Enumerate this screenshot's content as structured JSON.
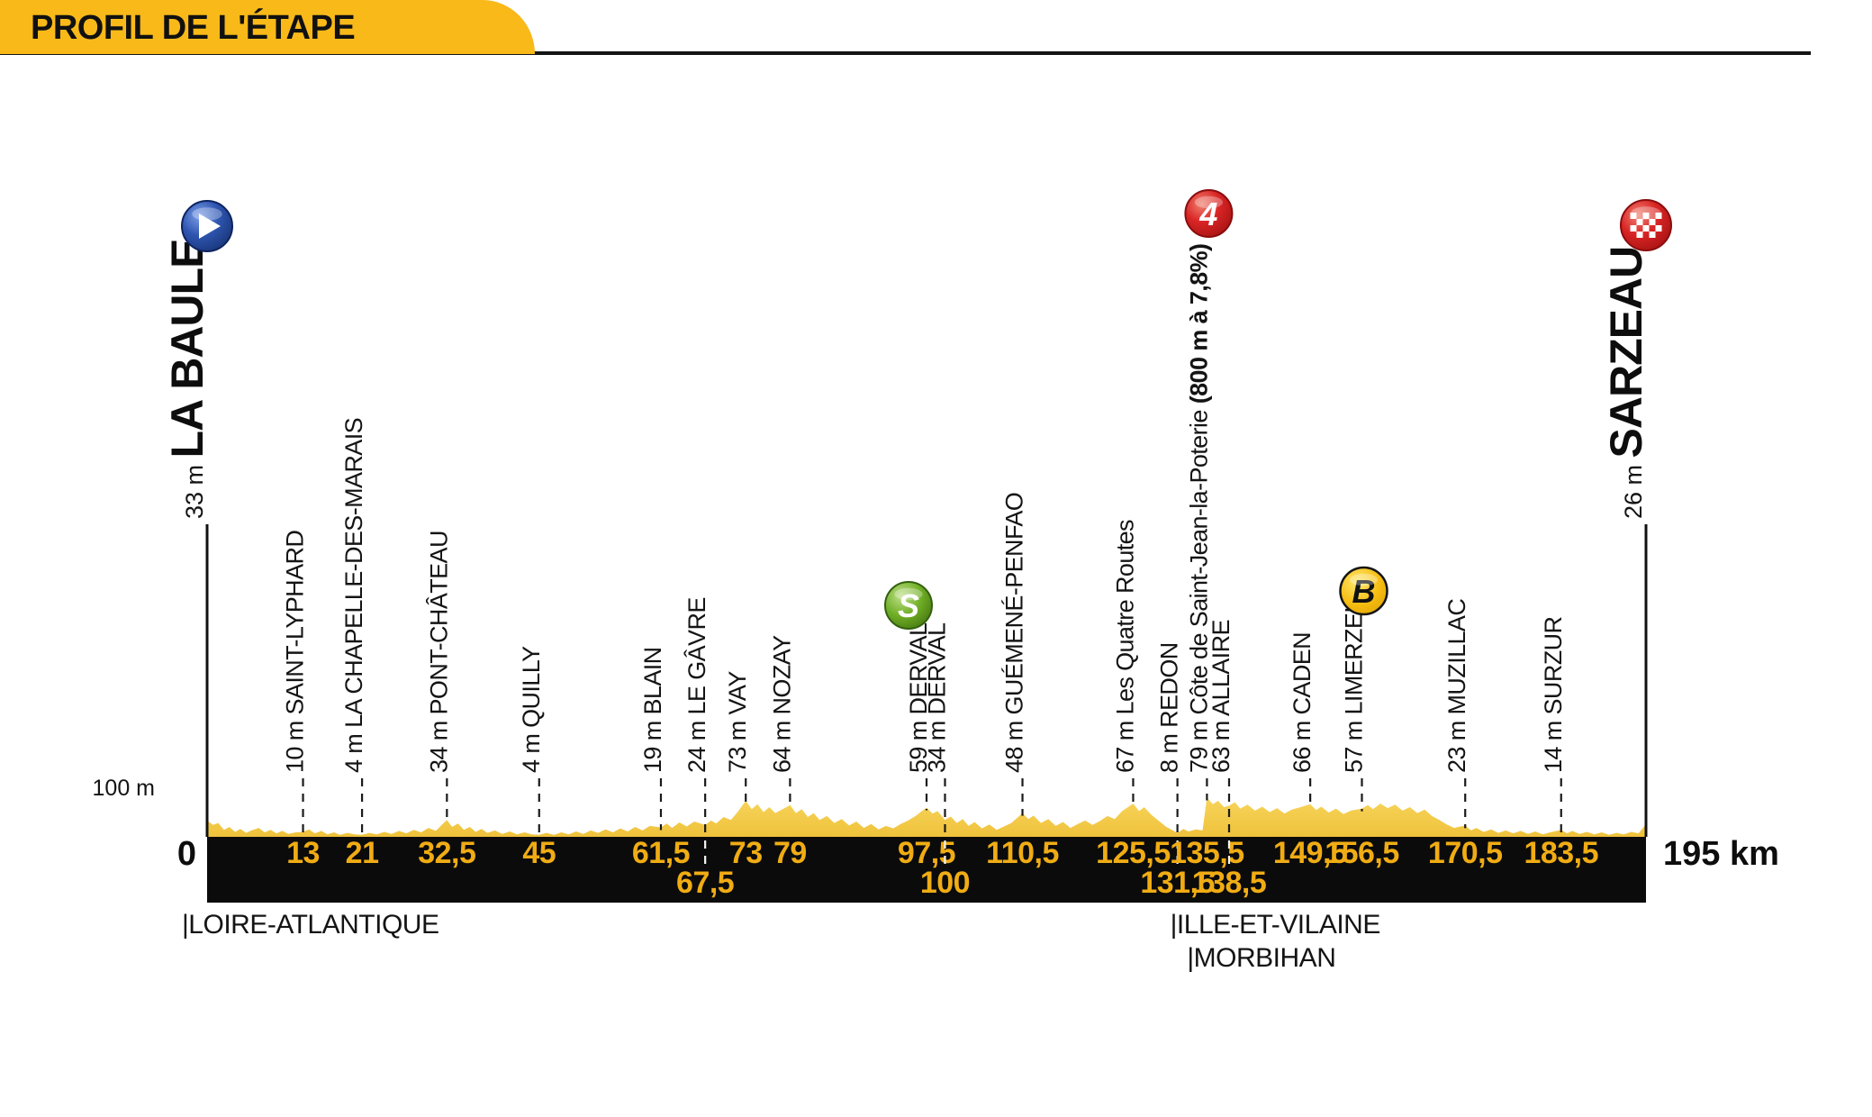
{
  "header": {
    "title": "PROFIL DE L'ÉTAPE"
  },
  "chart_data": {
    "type": "area",
    "title": "PROFIL DE L'ÉTAPE",
    "x_unit": "km",
    "y_unit": "m",
    "total_km": 195,
    "ylim": [
      0,
      100
    ],
    "axis": {
      "origin_label": "0",
      "end_label": "195 km",
      "elevation_marker": "100 m"
    },
    "start": {
      "name": "LA BAULE",
      "elevation_label": "33 m",
      "icon": "start"
    },
    "finish": {
      "name": "SARZEAU",
      "elevation_label": "26 m",
      "icon": "finish"
    },
    "waypoints": [
      {
        "km": 13,
        "km_label": "13",
        "elevation_label": "10 m",
        "name": "SAINT-LYPHARD",
        "row": 1,
        "icon": null
      },
      {
        "km": 21,
        "km_label": "21",
        "elevation_label": "4 m",
        "name": "LA CHAPELLE-DES-MARAIS",
        "row": 1,
        "icon": null
      },
      {
        "km": 32.5,
        "km_label": "32,5",
        "elevation_label": "34 m",
        "name": "PONT-CHÂTEAU",
        "row": 1,
        "icon": null
      },
      {
        "km": 45,
        "km_label": "45",
        "elevation_label": "4 m",
        "name": "QUILLY",
        "row": 1,
        "icon": null
      },
      {
        "km": 61.5,
        "km_label": "61,5",
        "elevation_label": "19 m",
        "name": "BLAIN",
        "row": 1,
        "icon": null
      },
      {
        "km": 67.5,
        "km_label": "67,5",
        "elevation_label": "24 m",
        "name": "LE GÂVRE",
        "row": 2,
        "icon": null
      },
      {
        "km": 73,
        "km_label": "73",
        "elevation_label": "73 m",
        "name": "VAY",
        "row": 1,
        "icon": null
      },
      {
        "km": 79,
        "km_label": "79",
        "elevation_label": "64 m",
        "name": "NOZAY",
        "row": 1,
        "icon": null
      },
      {
        "km": 97.5,
        "km_label": "97,5",
        "elevation_label": "59 m",
        "name": "DERVAL",
        "row": 1,
        "icon": "sprint"
      },
      {
        "km": 100,
        "km_label": "100",
        "elevation_label": "34 m",
        "name": "DERVAL",
        "row": 2,
        "icon": null
      },
      {
        "km": 110.5,
        "km_label": "110,5",
        "elevation_label": "48 m",
        "name": "GUÉMENÉ-PENFAO",
        "row": 1,
        "icon": null
      },
      {
        "km": 125.5,
        "km_label": "125,5",
        "elevation_label": "67 m",
        "name": "Les Quatre Routes",
        "row": 1,
        "icon": null
      },
      {
        "km": 131.5,
        "km_label": "131,5",
        "elevation_label": "8 m",
        "name": "REDON",
        "row": 2,
        "icon": null
      },
      {
        "km": 135.5,
        "km_label": "135,5",
        "elevation_label": "79 m",
        "name": "Côte de Saint-Jean-la-Poterie",
        "detail": "(800 m à 7,8%)",
        "row": 1,
        "icon": "category-4"
      },
      {
        "km": 138.5,
        "km_label": "138,5",
        "elevation_label": "63 m",
        "name": "ALLAIRE",
        "row": 2,
        "icon": null
      },
      {
        "km": 149.5,
        "km_label": "149,5",
        "elevation_label": "66 m",
        "name": "CADEN",
        "row": 1,
        "icon": null
      },
      {
        "km": 156.5,
        "km_label": "156,5",
        "elevation_label": "57 m",
        "name": "LIMERZEL",
        "row": 1,
        "icon": "bonus"
      },
      {
        "km": 170.5,
        "km_label": "170,5",
        "elevation_label": "23 m",
        "name": "MUZILLAC",
        "row": 1,
        "icon": null
      },
      {
        "km": 183.5,
        "km_label": "183,5",
        "elevation_label": "14 m",
        "name": "SURZUR",
        "row": 1,
        "icon": null
      }
    ],
    "regions": [
      {
        "name": "LOIRE-ATLANTIQUE",
        "km": 0,
        "row": 1
      },
      {
        "name": "ILLE-ET-VILAINE",
        "km": 131.5,
        "row": 1
      },
      {
        "name": "MORBIHAN",
        "km": 135.5,
        "row": 2
      }
    ],
    "profile": [
      [
        0,
        33
      ],
      [
        0.8,
        24
      ],
      [
        1.5,
        28
      ],
      [
        2.3,
        14
      ],
      [
        3,
        20
      ],
      [
        3.8,
        10
      ],
      [
        4.5,
        16
      ],
      [
        5.3,
        8
      ],
      [
        6,
        13
      ],
      [
        7,
        18
      ],
      [
        7.8,
        9
      ],
      [
        8.6,
        14
      ],
      [
        9.4,
        7
      ],
      [
        10.2,
        12
      ],
      [
        11,
        6
      ],
      [
        12,
        9
      ],
      [
        13,
        10
      ],
      [
        13.8,
        15
      ],
      [
        14.6,
        7
      ],
      [
        15.5,
        12
      ],
      [
        16.3,
        5
      ],
      [
        17.2,
        9
      ],
      [
        18,
        4
      ],
      [
        19,
        8
      ],
      [
        20,
        5
      ],
      [
        21,
        4
      ],
      [
        22,
        8
      ],
      [
        23,
        5
      ],
      [
        24,
        10
      ],
      [
        25,
        6
      ],
      [
        26,
        12
      ],
      [
        27,
        7
      ],
      [
        28,
        14
      ],
      [
        29,
        9
      ],
      [
        30,
        18
      ],
      [
        31,
        12
      ],
      [
        31.8,
        24
      ],
      [
        32.5,
        34
      ],
      [
        33.2,
        20
      ],
      [
        34,
        27
      ],
      [
        34.8,
        14
      ],
      [
        35.6,
        20
      ],
      [
        36.4,
        10
      ],
      [
        37.2,
        16
      ],
      [
        38,
        8
      ],
      [
        39,
        13
      ],
      [
        40,
        6
      ],
      [
        41,
        11
      ],
      [
        42,
        5
      ],
      [
        43,
        9
      ],
      [
        44,
        5
      ],
      [
        45,
        4
      ],
      [
        46,
        8
      ],
      [
        47,
        4
      ],
      [
        48,
        9
      ],
      [
        49,
        5
      ],
      [
        50,
        11
      ],
      [
        51,
        6
      ],
      [
        52,
        13
      ],
      [
        53,
        8
      ],
      [
        54,
        15
      ],
      [
        55,
        9
      ],
      [
        56,
        17
      ],
      [
        57,
        11
      ],
      [
        58,
        20
      ],
      [
        59,
        13
      ],
      [
        60,
        22
      ],
      [
        61.5,
        19
      ],
      [
        62.3,
        27
      ],
      [
        63,
        18
      ],
      [
        64,
        29
      ],
      [
        65,
        21
      ],
      [
        66,
        31
      ],
      [
        67.5,
        24
      ],
      [
        68.3,
        33
      ],
      [
        69,
        27
      ],
      [
        70,
        40
      ],
      [
        71,
        34
      ],
      [
        72,
        52
      ],
      [
        73,
        73
      ],
      [
        73.8,
        56
      ],
      [
        74.6,
        66
      ],
      [
        75.4,
        50
      ],
      [
        76.2,
        60
      ],
      [
        77,
        48
      ],
      [
        78,
        56
      ],
      [
        79,
        64
      ],
      [
        79.8,
        48
      ],
      [
        80.6,
        56
      ],
      [
        81.4,
        40
      ],
      [
        82.2,
        48
      ],
      [
        83,
        34
      ],
      [
        84,
        42
      ],
      [
        85,
        28
      ],
      [
        86,
        36
      ],
      [
        87,
        23
      ],
      [
        88,
        31
      ],
      [
        89,
        18
      ],
      [
        90,
        26
      ],
      [
        91,
        15
      ],
      [
        92,
        22
      ],
      [
        93,
        17
      ],
      [
        94,
        26
      ],
      [
        95,
        33
      ],
      [
        96,
        42
      ],
      [
        97.5,
        59
      ],
      [
        98.3,
        47
      ],
      [
        99,
        52
      ],
      [
        100,
        34
      ],
      [
        100.8,
        41
      ],
      [
        101.6,
        28
      ],
      [
        102.4,
        36
      ],
      [
        103.2,
        22
      ],
      [
        104,
        30
      ],
      [
        105,
        17
      ],
      [
        106,
        25
      ],
      [
        107,
        14
      ],
      [
        108,
        21
      ],
      [
        109,
        28
      ],
      [
        110.5,
        48
      ],
      [
        111.3,
        36
      ],
      [
        112,
        43
      ],
      [
        113,
        28
      ],
      [
        114,
        36
      ],
      [
        115,
        22
      ],
      [
        116,
        30
      ],
      [
        117,
        18
      ],
      [
        118,
        26
      ],
      [
        119,
        33
      ],
      [
        120,
        24
      ],
      [
        121,
        32
      ],
      [
        122,
        42
      ],
      [
        123,
        36
      ],
      [
        124,
        52
      ],
      [
        125.5,
        67
      ],
      [
        126.3,
        52
      ],
      [
        127,
        60
      ],
      [
        128,
        44
      ],
      [
        129,
        32
      ],
      [
        130,
        20
      ],
      [
        131.5,
        8
      ],
      [
        132.3,
        16
      ],
      [
        133,
        11
      ],
      [
        134,
        15
      ],
      [
        134.9,
        13
      ],
      [
        135.5,
        79
      ],
      [
        136.3,
        66
      ],
      [
        137,
        73
      ],
      [
        137.8,
        60
      ],
      [
        138.5,
        63
      ],
      [
        139.3,
        70
      ],
      [
        140,
        57
      ],
      [
        141,
        65
      ],
      [
        142,
        53
      ],
      [
        143,
        61
      ],
      [
        144,
        50
      ],
      [
        145,
        58
      ],
      [
        146,
        47
      ],
      [
        147,
        55
      ],
      [
        148,
        59
      ],
      [
        149.5,
        66
      ],
      [
        150.3,
        54
      ],
      [
        151,
        61
      ],
      [
        152,
        49
      ],
      [
        153,
        57
      ],
      [
        154,
        46
      ],
      [
        155,
        53
      ],
      [
        156.5,
        57
      ],
      [
        157.3,
        64
      ],
      [
        158,
        56
      ],
      [
        159,
        67
      ],
      [
        160,
        58
      ],
      [
        161,
        65
      ],
      [
        162,
        53
      ],
      [
        163,
        60
      ],
      [
        164,
        48
      ],
      [
        165,
        55
      ],
      [
        166,
        42
      ],
      [
        167,
        34
      ],
      [
        168,
        25
      ],
      [
        169,
        18
      ],
      [
        170.5,
        23
      ],
      [
        171.3,
        13
      ],
      [
        172,
        18
      ],
      [
        173,
        10
      ],
      [
        174,
        15
      ],
      [
        175,
        8
      ],
      [
        176,
        13
      ],
      [
        177,
        7
      ],
      [
        178,
        12
      ],
      [
        179,
        6
      ],
      [
        180,
        11
      ],
      [
        181,
        5
      ],
      [
        182,
        9
      ],
      [
        183.5,
        14
      ],
      [
        184.3,
        7
      ],
      [
        185,
        12
      ],
      [
        186,
        6
      ],
      [
        187,
        10
      ],
      [
        188,
        5
      ],
      [
        189,
        9
      ],
      [
        190,
        4
      ],
      [
        191,
        8
      ],
      [
        192,
        5
      ],
      [
        193,
        10
      ],
      [
        194,
        7
      ],
      [
        195,
        26
      ]
    ],
    "colors": {
      "banner": "#F8B919",
      "terrain": "#EFC23C",
      "terrain_light": "#F7D45A",
      "distance_bar": "#0B0B0B",
      "km_labels": "#F0AC14",
      "sprint_icon": "#6FAE25",
      "climb_icon": "#D92525",
      "bonus_icon": "#F7BD11",
      "start_icon": "#2E55B0"
    }
  }
}
